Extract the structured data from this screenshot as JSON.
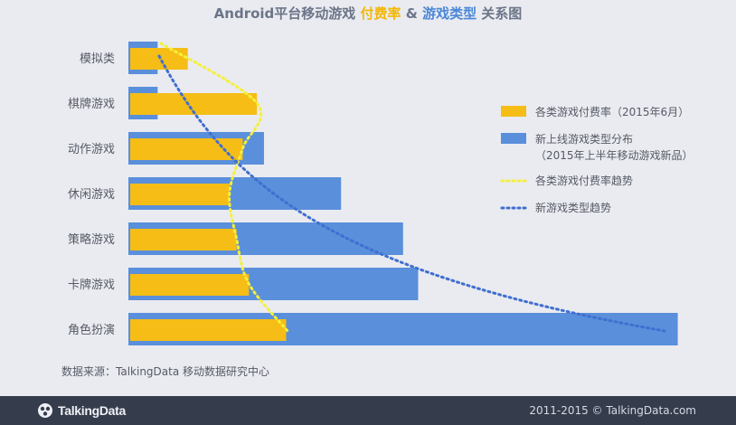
{
  "title": {
    "prefix": "Android平台移动游戏 ",
    "part_yellow": "付费率",
    "amp": " & ",
    "part_blue": "游戏类型",
    "suffix": " 关系图"
  },
  "chart_data": {
    "type": "bar",
    "orientation": "horizontal",
    "categories": [
      "模拟类",
      "棋牌游戏",
      "动作游戏",
      "休闲游戏",
      "策略游戏",
      "卡牌游戏",
      "角色扮演"
    ],
    "series": [
      {
        "name": "各类游戏付费率（2015年6月）",
        "color": "#f5bd16",
        "values": [
          6.5,
          14.3,
          12.7,
          11.2,
          12.0,
          13.4,
          17.6
        ]
      },
      {
        "name": "新上线游戏类型分布\n（2015年上半年移动游戏新品）",
        "color": "#5a8fdb",
        "values": [
          3.3,
          3.3,
          15.3,
          24.0,
          31.0,
          32.7,
          62.0
        ]
      }
    ],
    "trend_lines": [
      {
        "name": "各类游戏付费率趋势",
        "color": "#f5f03a"
      },
      {
        "name": "新游戏类型趋势",
        "color": "#3f6fd1"
      }
    ],
    "legend_position": "right",
    "grid": false,
    "axes_visible": false
  },
  "legend": [
    {
      "label": "各类游戏付费率（2015年6月）",
      "kind": "bar",
      "color": "#f5bd16"
    },
    {
      "label": "新上线游戏类型分布",
      "label2": "（2015年上半年移动游戏新品）",
      "kind": "bar",
      "color": "#5a8fdb"
    },
    {
      "label": "各类游戏付费率趋势",
      "kind": "dots",
      "color": "#f5f03a"
    },
    {
      "label": "新游戏类型趋势",
      "kind": "dots",
      "color": "#3f6fd1"
    }
  ],
  "source": "数据来源：TalkingData 移动数据研究中心",
  "footer": {
    "brand": "TalkingData",
    "copyright": "2011-2015 © TalkingData.com"
  }
}
